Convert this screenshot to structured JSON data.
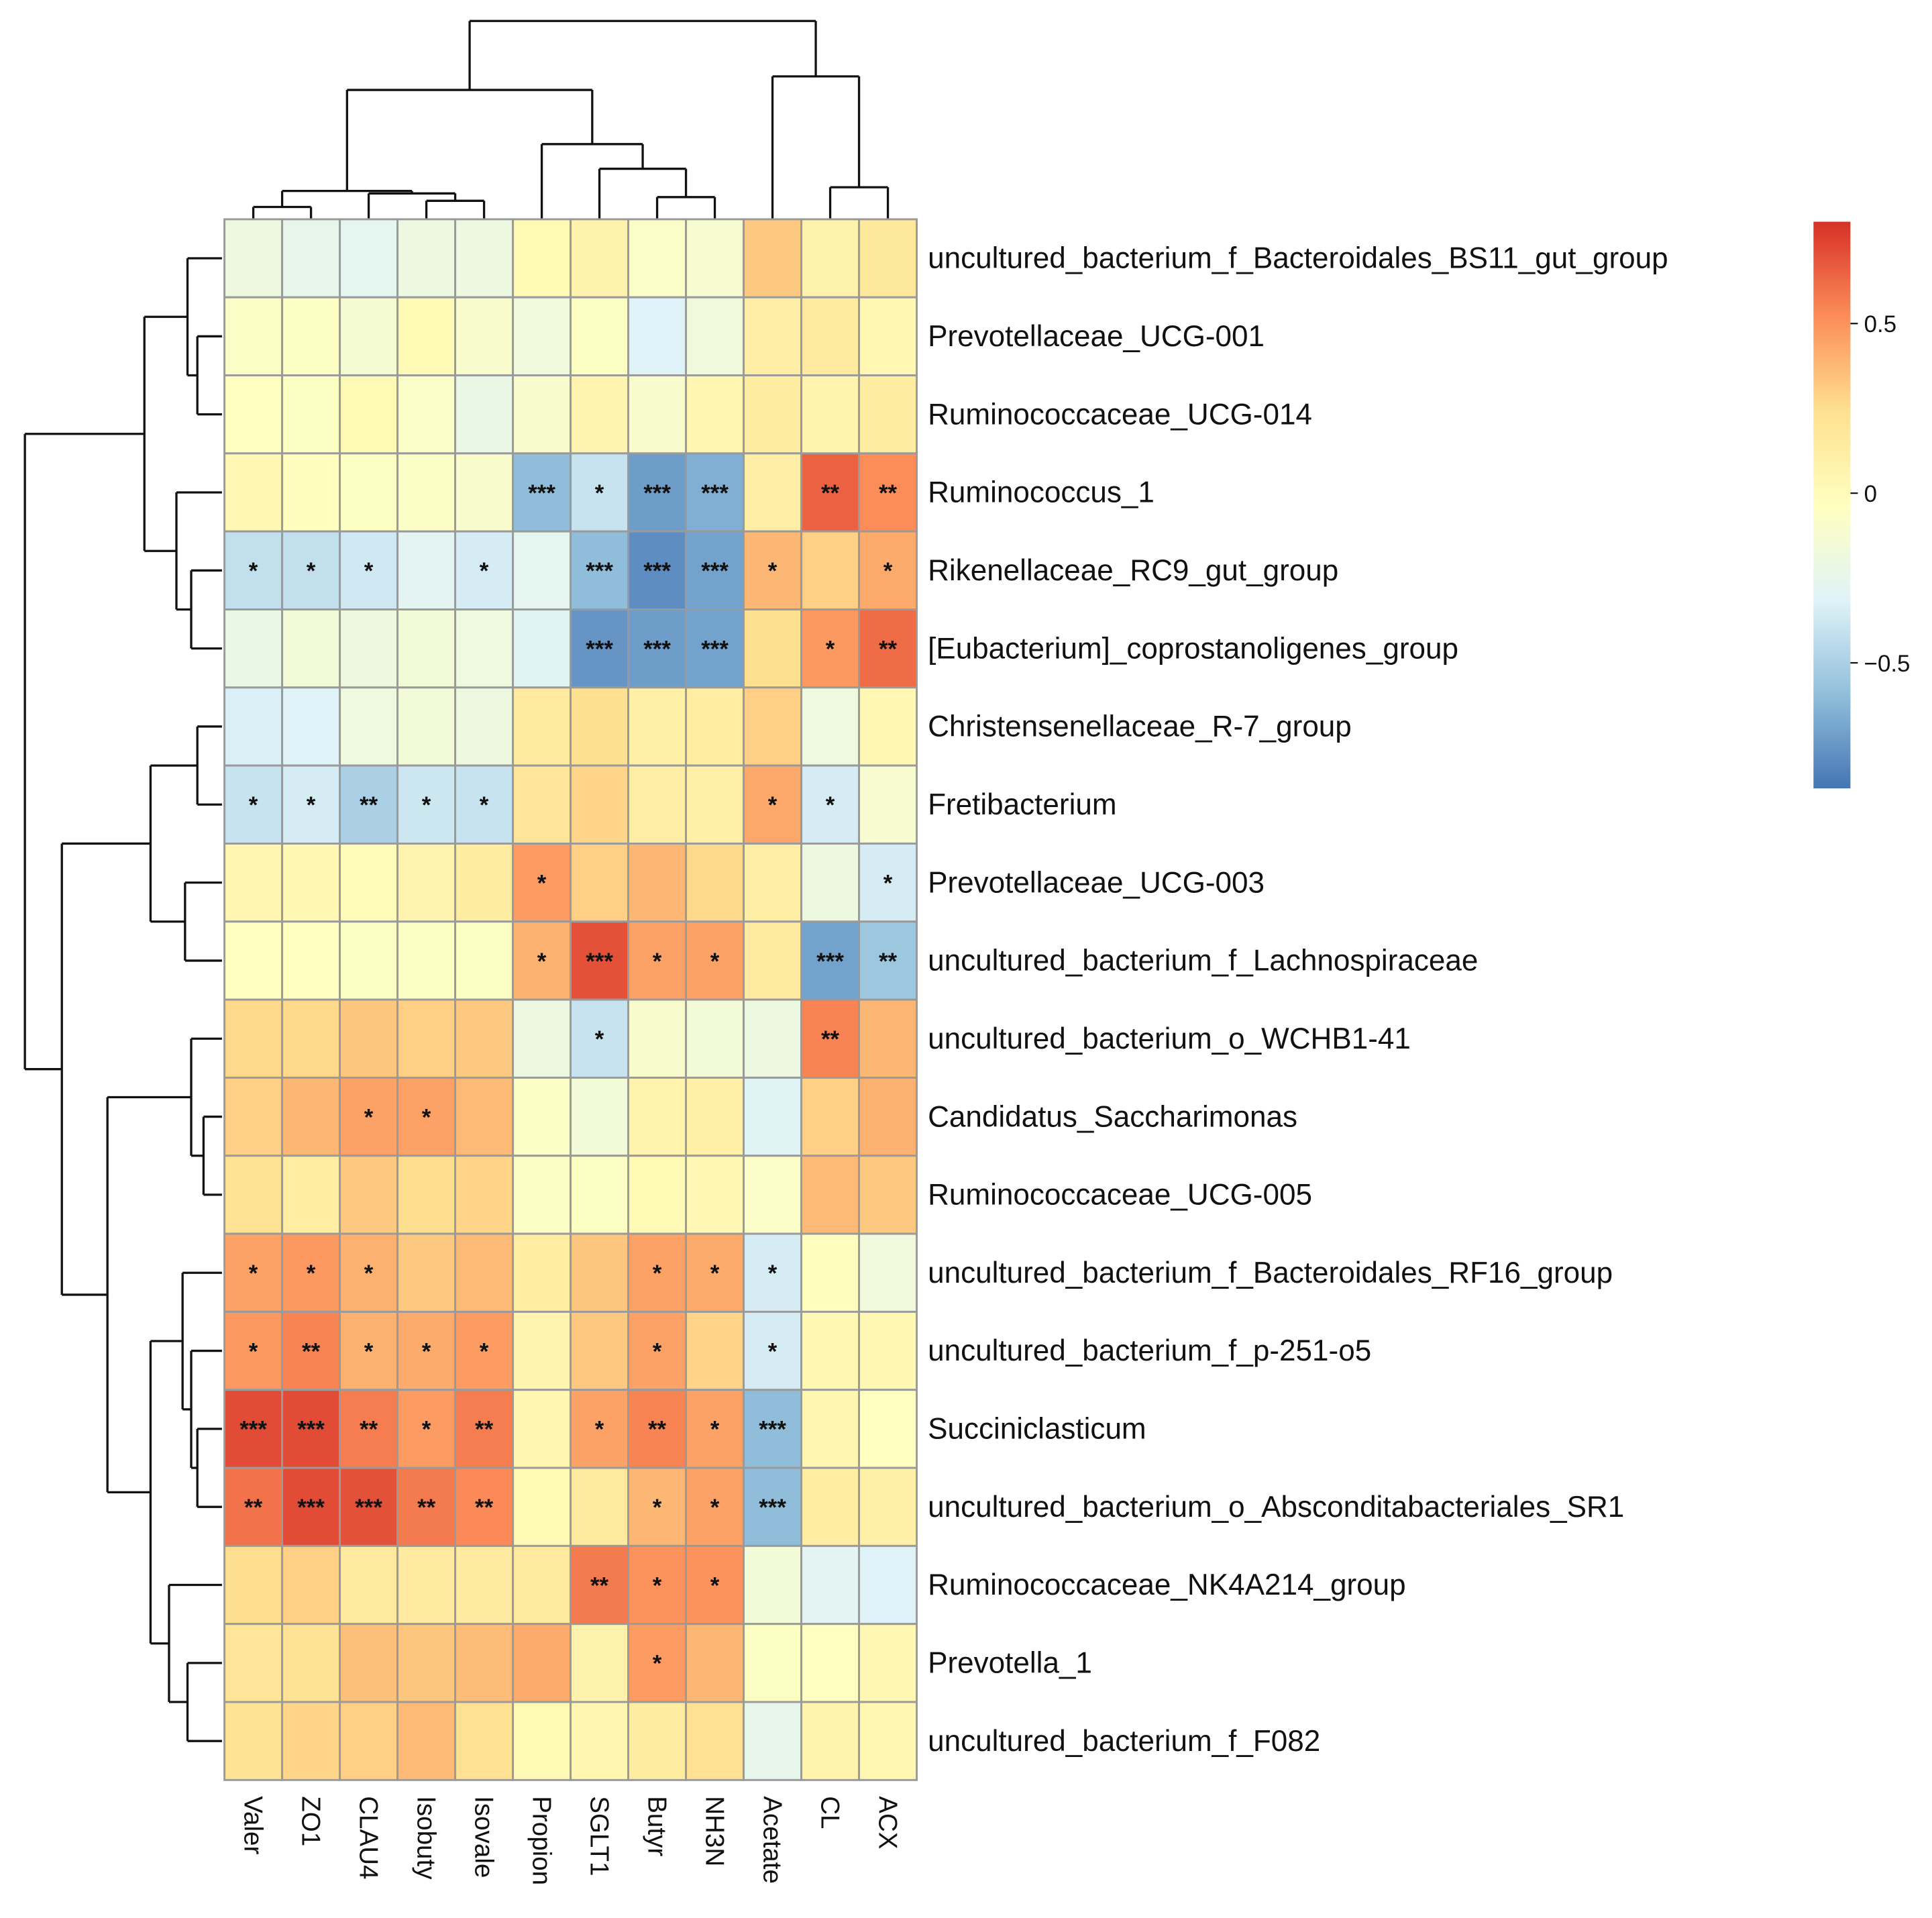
{
  "chart_data": {
    "type": "heatmap",
    "title": "",
    "columns": [
      "Valer",
      "ZO1",
      "CLAU4",
      "Isobuty",
      "Isovale",
      "Propion",
      "SGLT1",
      "Butyr",
      "NH3N",
      "Acetate",
      "CL",
      "ACX"
    ],
    "rows": [
      "uncultured_bacterium_f_Bacteroidales_BS11_gut_group",
      "Prevotellaceae_UCG-001",
      "Ruminococcaceae_UCG-014",
      "Ruminococcus_1",
      "Rikenellaceae_RC9_gut_group",
      "[Eubacterium]_coprostanoligenes_group",
      "Christensenellaceae_R-7_group",
      "Fretibacterium",
      "Prevotellaceae_UCG-003",
      "uncultured_bacterium_f_Lachnospiraceae",
      "uncultured_bacterium_o_WCHB1-41",
      "Candidatus_Saccharimonas",
      "Ruminococcaceae_UCG-005",
      "uncultured_bacterium_f_Bacteroidales_RF16_group",
      "uncultured_bacterium_f_p-251-o5",
      "Succiniclasticum",
      "uncultured_bacterium_o_Absconditabacteriales_SR1",
      "Ruminococcaceae_NK4A214_group",
      "Prevotella_1",
      "uncultured_bacterium_f_F082"
    ],
    "values": [
      [
        -0.2,
        -0.25,
        -0.27,
        -0.2,
        -0.2,
        0.02,
        0.08,
        -0.08,
        -0.12,
        0.32,
        0.08,
        0.17
      ],
      [
        -0.07,
        -0.06,
        -0.13,
        0.02,
        -0.1,
        -0.17,
        -0.05,
        -0.32,
        -0.17,
        0.12,
        0.15,
        0.04
      ],
      [
        -0.04,
        -0.05,
        0.02,
        -0.08,
        -0.22,
        -0.1,
        0.06,
        -0.1,
        0.05,
        0.14,
        0.07,
        0.14
      ],
      [
        0.03,
        -0.03,
        -0.05,
        -0.07,
        -0.1,
        -0.6,
        -0.4,
        -0.72,
        -0.65,
        0.12,
        0.65,
        0.52
      ],
      [
        -0.42,
        -0.42,
        -0.37,
        -0.28,
        -0.35,
        -0.27,
        -0.6,
        -0.78,
        -0.7,
        0.38,
        0.3,
        0.42
      ],
      [
        -0.22,
        -0.15,
        -0.2,
        -0.15,
        -0.18,
        -0.3,
        -0.75,
        -0.72,
        -0.7,
        0.24,
        0.48,
        0.62
      ],
      [
        -0.33,
        -0.32,
        -0.18,
        -0.15,
        -0.2,
        0.16,
        0.24,
        0.1,
        0.13,
        0.3,
        -0.18,
        0.03
      ],
      [
        -0.4,
        -0.35,
        -0.5,
        -0.38,
        -0.4,
        0.2,
        0.28,
        0.12,
        0.1,
        0.43,
        -0.35,
        -0.12
      ],
      [
        0.05,
        0.03,
        0.0,
        0.06,
        0.14,
        0.47,
        0.3,
        0.38,
        0.27,
        0.12,
        -0.2,
        -0.35
      ],
      [
        -0.04,
        -0.04,
        -0.06,
        -0.06,
        -0.05,
        0.4,
        0.7,
        0.45,
        0.45,
        0.15,
        -0.7,
        -0.55
      ],
      [
        0.27,
        0.27,
        0.33,
        0.3,
        0.32,
        -0.2,
        -0.4,
        -0.1,
        -0.15,
        -0.2,
        0.55,
        0.38
      ],
      [
        0.3,
        0.38,
        0.45,
        0.45,
        0.37,
        -0.07,
        -0.15,
        0.07,
        0.1,
        -0.3,
        0.3,
        0.4
      ],
      [
        0.22,
        0.13,
        0.32,
        0.25,
        0.28,
        -0.07,
        -0.05,
        0.02,
        0.03,
        -0.08,
        0.37,
        0.32
      ],
      [
        0.45,
        0.48,
        0.4,
        0.32,
        0.37,
        0.13,
        0.33,
        0.45,
        0.42,
        -0.35,
        -0.03,
        -0.17
      ],
      [
        0.48,
        0.55,
        0.4,
        0.42,
        0.47,
        0.06,
        0.32,
        0.45,
        0.28,
        -0.35,
        0.03,
        0.03
      ],
      [
        0.72,
        0.72,
        0.57,
        0.47,
        0.57,
        0.05,
        0.45,
        0.55,
        0.45,
        -0.6,
        0.05,
        -0.04
      ],
      [
        0.6,
        0.72,
        0.7,
        0.58,
        0.53,
        0.02,
        0.16,
        0.38,
        0.45,
        -0.6,
        0.13,
        0.1
      ],
      [
        0.25,
        0.3,
        0.16,
        0.15,
        0.15,
        0.16,
        0.58,
        0.5,
        0.5,
        -0.15,
        -0.28,
        -0.32
      ],
      [
        0.2,
        0.22,
        0.35,
        0.33,
        0.36,
        0.42,
        0.08,
        0.47,
        0.38,
        -0.05,
        -0.04,
        0.03
      ],
      [
        0.22,
        0.28,
        0.3,
        0.37,
        0.23,
        0.02,
        0.05,
        0.14,
        0.23,
        -0.25,
        0.07,
        0.04
      ]
    ],
    "significance": [
      [
        "",
        "",
        "",
        "",
        "",
        "",
        "",
        "",
        "",
        "",
        "",
        ""
      ],
      [
        "",
        "",
        "",
        "",
        "",
        "",
        "",
        "",
        "",
        "",
        "",
        ""
      ],
      [
        "",
        "",
        "",
        "",
        "",
        "",
        "",
        "",
        "",
        "",
        "",
        ""
      ],
      [
        "",
        "",
        "",
        "",
        "",
        "***",
        "*",
        "***",
        "***",
        "",
        "**",
        "**"
      ],
      [
        "*",
        "*",
        "*",
        "",
        "*",
        "",
        "***",
        "***",
        "***",
        "*",
        "",
        "*"
      ],
      [
        "",
        "",
        "",
        "",
        "",
        "",
        "***",
        "***",
        "***",
        "",
        "*",
        "**"
      ],
      [
        "",
        "",
        "",
        "",
        "",
        "",
        "",
        "",
        "",
        "",
        "",
        ""
      ],
      [
        "*",
        "*",
        "**",
        "*",
        "*",
        "",
        "",
        "",
        "",
        "*",
        "*",
        ""
      ],
      [
        "",
        "",
        "",
        "",
        "",
        "*",
        "",
        "",
        "",
        "",
        "",
        "*"
      ],
      [
        "",
        "",
        "",
        "",
        "",
        "*",
        "***",
        "*",
        "*",
        "",
        "***",
        "**"
      ],
      [
        "",
        "",
        "",
        "",
        "",
        "",
        "*",
        "",
        "",
        "",
        "**",
        ""
      ],
      [
        "",
        "",
        "*",
        "*",
        "",
        "",
        "",
        "",
        "",
        "",
        "",
        ""
      ],
      [
        "",
        "",
        "",
        "",
        "",
        "",
        "",
        "",
        "",
        "",
        "",
        ""
      ],
      [
        "*",
        "*",
        "*",
        "",
        "",
        "",
        "",
        "*",
        "*",
        "*",
        "",
        ""
      ],
      [
        "*",
        "**",
        "*",
        "*",
        "*",
        "",
        "",
        "*",
        "",
        "*",
        "",
        ""
      ],
      [
        "***",
        "***",
        "**",
        "*",
        "**",
        "",
        "*",
        "**",
        "*",
        "***",
        "",
        ""
      ],
      [
        "**",
        "***",
        "***",
        "**",
        "**",
        "",
        "",
        "*",
        "*",
        "***",
        "",
        ""
      ],
      [
        "",
        "",
        "",
        "",
        "",
        "",
        "**",
        "*",
        "*",
        "",
        "",
        ""
      ],
      [
        "",
        "",
        "",
        "",
        "",
        "",
        "",
        "*",
        "",
        "",
        "",
        ""
      ],
      [
        "",
        "",
        "",
        "",
        "",
        "",
        "",
        "",
        "",
        "",
        "",
        ""
      ]
    ],
    "color_scale": {
      "range": [
        -0.87,
        0.8
      ],
      "colors": [
        "#4575B4",
        "#91BFDB",
        "#E0F3F8",
        "#FFFFBF",
        "#FEE090",
        "#FC8D59",
        "#D73027"
      ],
      "ticks": [
        "0.5",
        "0",
        "-0.5"
      ],
      "tick_values": [
        0.5,
        0,
        -0.5
      ]
    },
    "xlabel": "",
    "ylabel": ""
  }
}
